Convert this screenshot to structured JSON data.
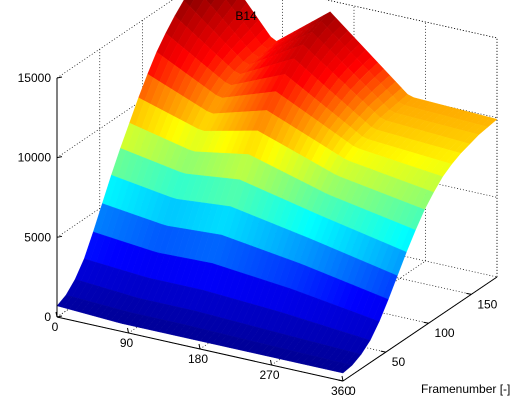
{
  "chart_data": {
    "type": "surface",
    "title": "B14",
    "xlabel": "",
    "ylabel": "Framenumber [-]",
    "zlabel": "",
    "x_ticks": [
      0,
      90,
      180,
      270,
      360
    ],
    "y_ticks": [
      0,
      50,
      100,
      150
    ],
    "z_ticks": [
      0,
      5000,
      10000,
      15000
    ],
    "xlim": [
      0,
      360
    ],
    "ylim": [
      0,
      180
    ],
    "zlim": [
      0,
      15000
    ],
    "grid": true,
    "colormap": "jet",
    "colormap_stops": [
      "#00007f",
      "#0000ff",
      "#00ffff",
      "#ffff00",
      "#ff0000",
      "#7f0000"
    ],
    "surface_profiles": [
      {
        "x": 0,
        "values": [
          700,
          1000,
          1600,
          2500,
          3800,
          5200,
          6600,
          7900,
          9100,
          10300,
          11400,
          12400,
          13200,
          13900,
          14500,
          15100,
          15700,
          16400
        ]
      },
      {
        "x": 80,
        "values": [
          500,
          800,
          1300,
          2200,
          3400,
          4700,
          6000,
          7200,
          8200,
          9100,
          9800,
          10400,
          10800,
          11100,
          11300,
          11400,
          11500,
          11600
        ]
      },
      {
        "x": 150,
        "values": [
          500,
          800,
          1300,
          2200,
          3500,
          4900,
          6300,
          7600,
          8800,
          9900,
          10800,
          11600,
          12300,
          12900,
          13400,
          13800,
          14100,
          14300
        ]
      },
      {
        "x": 250,
        "values": [
          500,
          700,
          1100,
          1900,
          3000,
          4200,
          5400,
          6500,
          7400,
          8200,
          8800,
          9200,
          9400,
          9600,
          9800,
          9900,
          10000,
          10100
        ]
      },
      {
        "x": 360,
        "values": [
          500,
          600,
          900,
          1400,
          2200,
          3200,
          4300,
          5400,
          6400,
          7300,
          8000,
          8600,
          9000,
          9300,
          9500,
          9700,
          9800,
          9900
        ]
      }
    ]
  }
}
